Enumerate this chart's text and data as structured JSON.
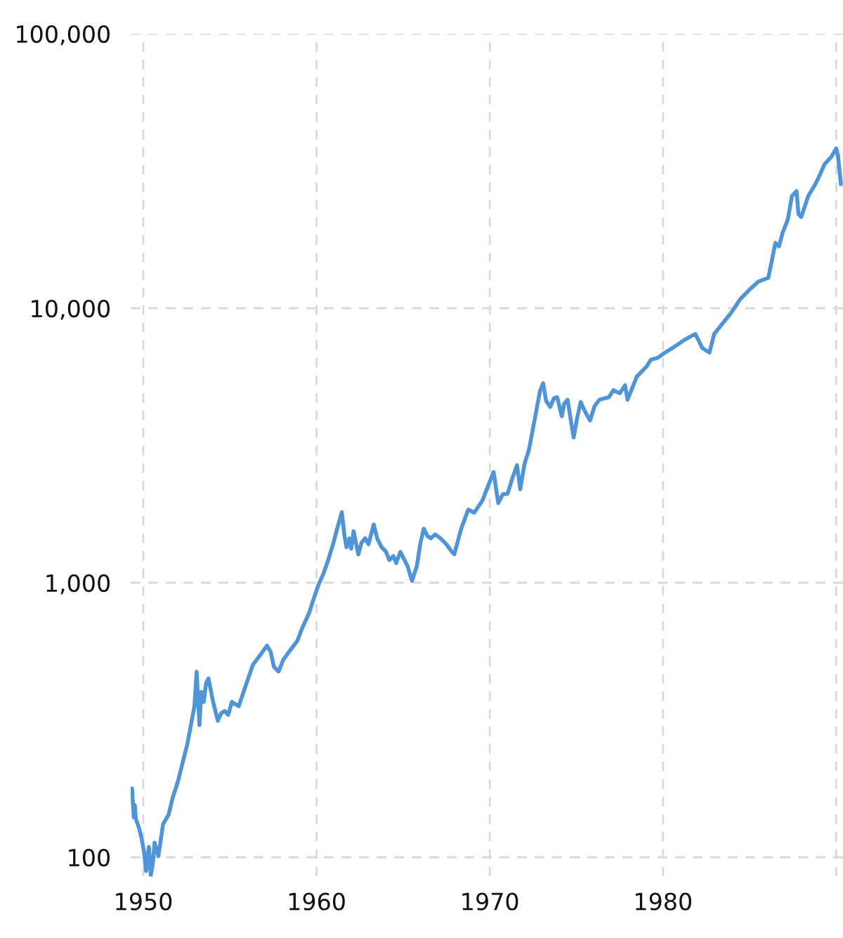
{
  "chart_data": {
    "type": "line",
    "x": [
      1949.35,
      1949.45,
      1949.51,
      1949.57,
      1949.75,
      1949.89,
      1950.05,
      1950.16,
      1950.32,
      1950.43,
      1950.55,
      1950.65,
      1950.87,
      1951.14,
      1951.46,
      1951.7,
      1952.0,
      1952.3,
      1952.54,
      1952.95,
      1953.08,
      1953.24,
      1953.35,
      1953.49,
      1953.62,
      1953.76,
      1954.03,
      1954.3,
      1954.5,
      1954.7,
      1954.9,
      1955.11,
      1955.51,
      1955.9,
      1956.33,
      1956.7,
      1957.14,
      1957.35,
      1957.54,
      1957.81,
      1958.08,
      1958.5,
      1958.89,
      1959.2,
      1959.57,
      1959.85,
      1960.11,
      1960.4,
      1960.65,
      1960.95,
      1961.19,
      1961.46,
      1961.6,
      1961.73,
      1961.9,
      1962.0,
      1962.14,
      1962.41,
      1962.6,
      1962.81,
      1963.0,
      1963.3,
      1963.5,
      1963.76,
      1964.0,
      1964.2,
      1964.44,
      1964.6,
      1964.84,
      1965.05,
      1965.25,
      1965.51,
      1965.79,
      1966.0,
      1966.19,
      1966.4,
      1966.6,
      1966.85,
      1967.14,
      1967.5,
      1967.82,
      1967.95,
      1968.35,
      1968.76,
      1969.1,
      1969.57,
      1969.9,
      1970.22,
      1970.49,
      1970.75,
      1971.03,
      1971.3,
      1971.57,
      1971.76,
      1972.0,
      1972.27,
      1972.68,
      1972.9,
      1973.08,
      1973.25,
      1973.49,
      1973.7,
      1973.89,
      1974.16,
      1974.3,
      1974.49,
      1974.84,
      1975.05,
      1975.25,
      1975.5,
      1975.79,
      1976.05,
      1976.33,
      1976.87,
      1977.14,
      1977.5,
      1977.81,
      1977.95,
      1978.49,
      1979.03,
      1979.3,
      1979.7,
      1980.11,
      1980.6,
      1981.19,
      1981.6,
      1981.87,
      1982.27,
      1982.68,
      1982.95,
      1983.5,
      1983.92,
      1984.46,
      1985.0,
      1985.5,
      1986.08,
      1986.49,
      1986.7,
      1986.9,
      1987.2,
      1987.44,
      1987.71,
      1987.82,
      1987.98,
      1988.38,
      1988.79,
      1989.0,
      1989.33,
      1989.7,
      1990.0,
      1990.1,
      1990.27
    ],
    "series": [
      {
        "color": "#4f94d6",
        "values": [
          178,
          140,
          155,
          138,
          128,
          118,
          104,
          89,
          109,
          86,
          95,
          113,
          101,
          132,
          143,
          165,
          189,
          225,
          258,
          354,
          474,
          303,
          400,
          368,
          430,
          448,
          368,
          314,
          335,
          341,
          330,
          368,
          355,
          420,
          503,
          540,
          590,
          560,
          494,
          475,
          524,
          570,
          614,
          690,
          775,
          880,
          981,
          1080,
          1198,
          1380,
          1574,
          1807,
          1500,
          1346,
          1450,
          1330,
          1542,
          1268,
          1400,
          1453,
          1380,
          1630,
          1450,
          1346,
          1300,
          1210,
          1250,
          1180,
          1295,
          1220,
          1150,
          1017,
          1150,
          1400,
          1574,
          1480,
          1453,
          1500,
          1453,
          1380,
          1295,
          1270,
          1574,
          1847,
          1800,
          1990,
          2250,
          2530,
          1950,
          2100,
          2110,
          2400,
          2680,
          2190,
          2700,
          3070,
          4210,
          5000,
          5330,
          4600,
          4370,
          4700,
          4740,
          4040,
          4500,
          4640,
          3380,
          4000,
          4550,
          4200,
          3900,
          4400,
          4640,
          4740,
          5030,
          4900,
          5240,
          4640,
          5640,
          6110,
          6490,
          6600,
          6890,
          7200,
          7630,
          7900,
          8050,
          7160,
          6890,
          8050,
          8900,
          9600,
          10800,
          11700,
          12500,
          12900,
          17300,
          16800,
          18800,
          21000,
          25600,
          26700,
          22000,
          21500,
          25600,
          28300,
          30100,
          33500,
          35500,
          38200,
          36000,
          28300
        ]
      }
    ],
    "log": "y",
    "xlim": [
      1949.27,
      1990.39
    ],
    "xticks": [
      1950,
      1960,
      1970,
      1980,
      {
        "value": 1990,
        "label": null
      }
    ],
    "ylim": [
      85,
      100000
    ],
    "yticks": [
      100,
      {
        "value": 1000,
        "label": "1,000"
      },
      {
        "value": 10000,
        "label": "10,000"
      },
      {
        "value": 100000,
        "label": "100,000"
      }
    ],
    "grid": true
  }
}
